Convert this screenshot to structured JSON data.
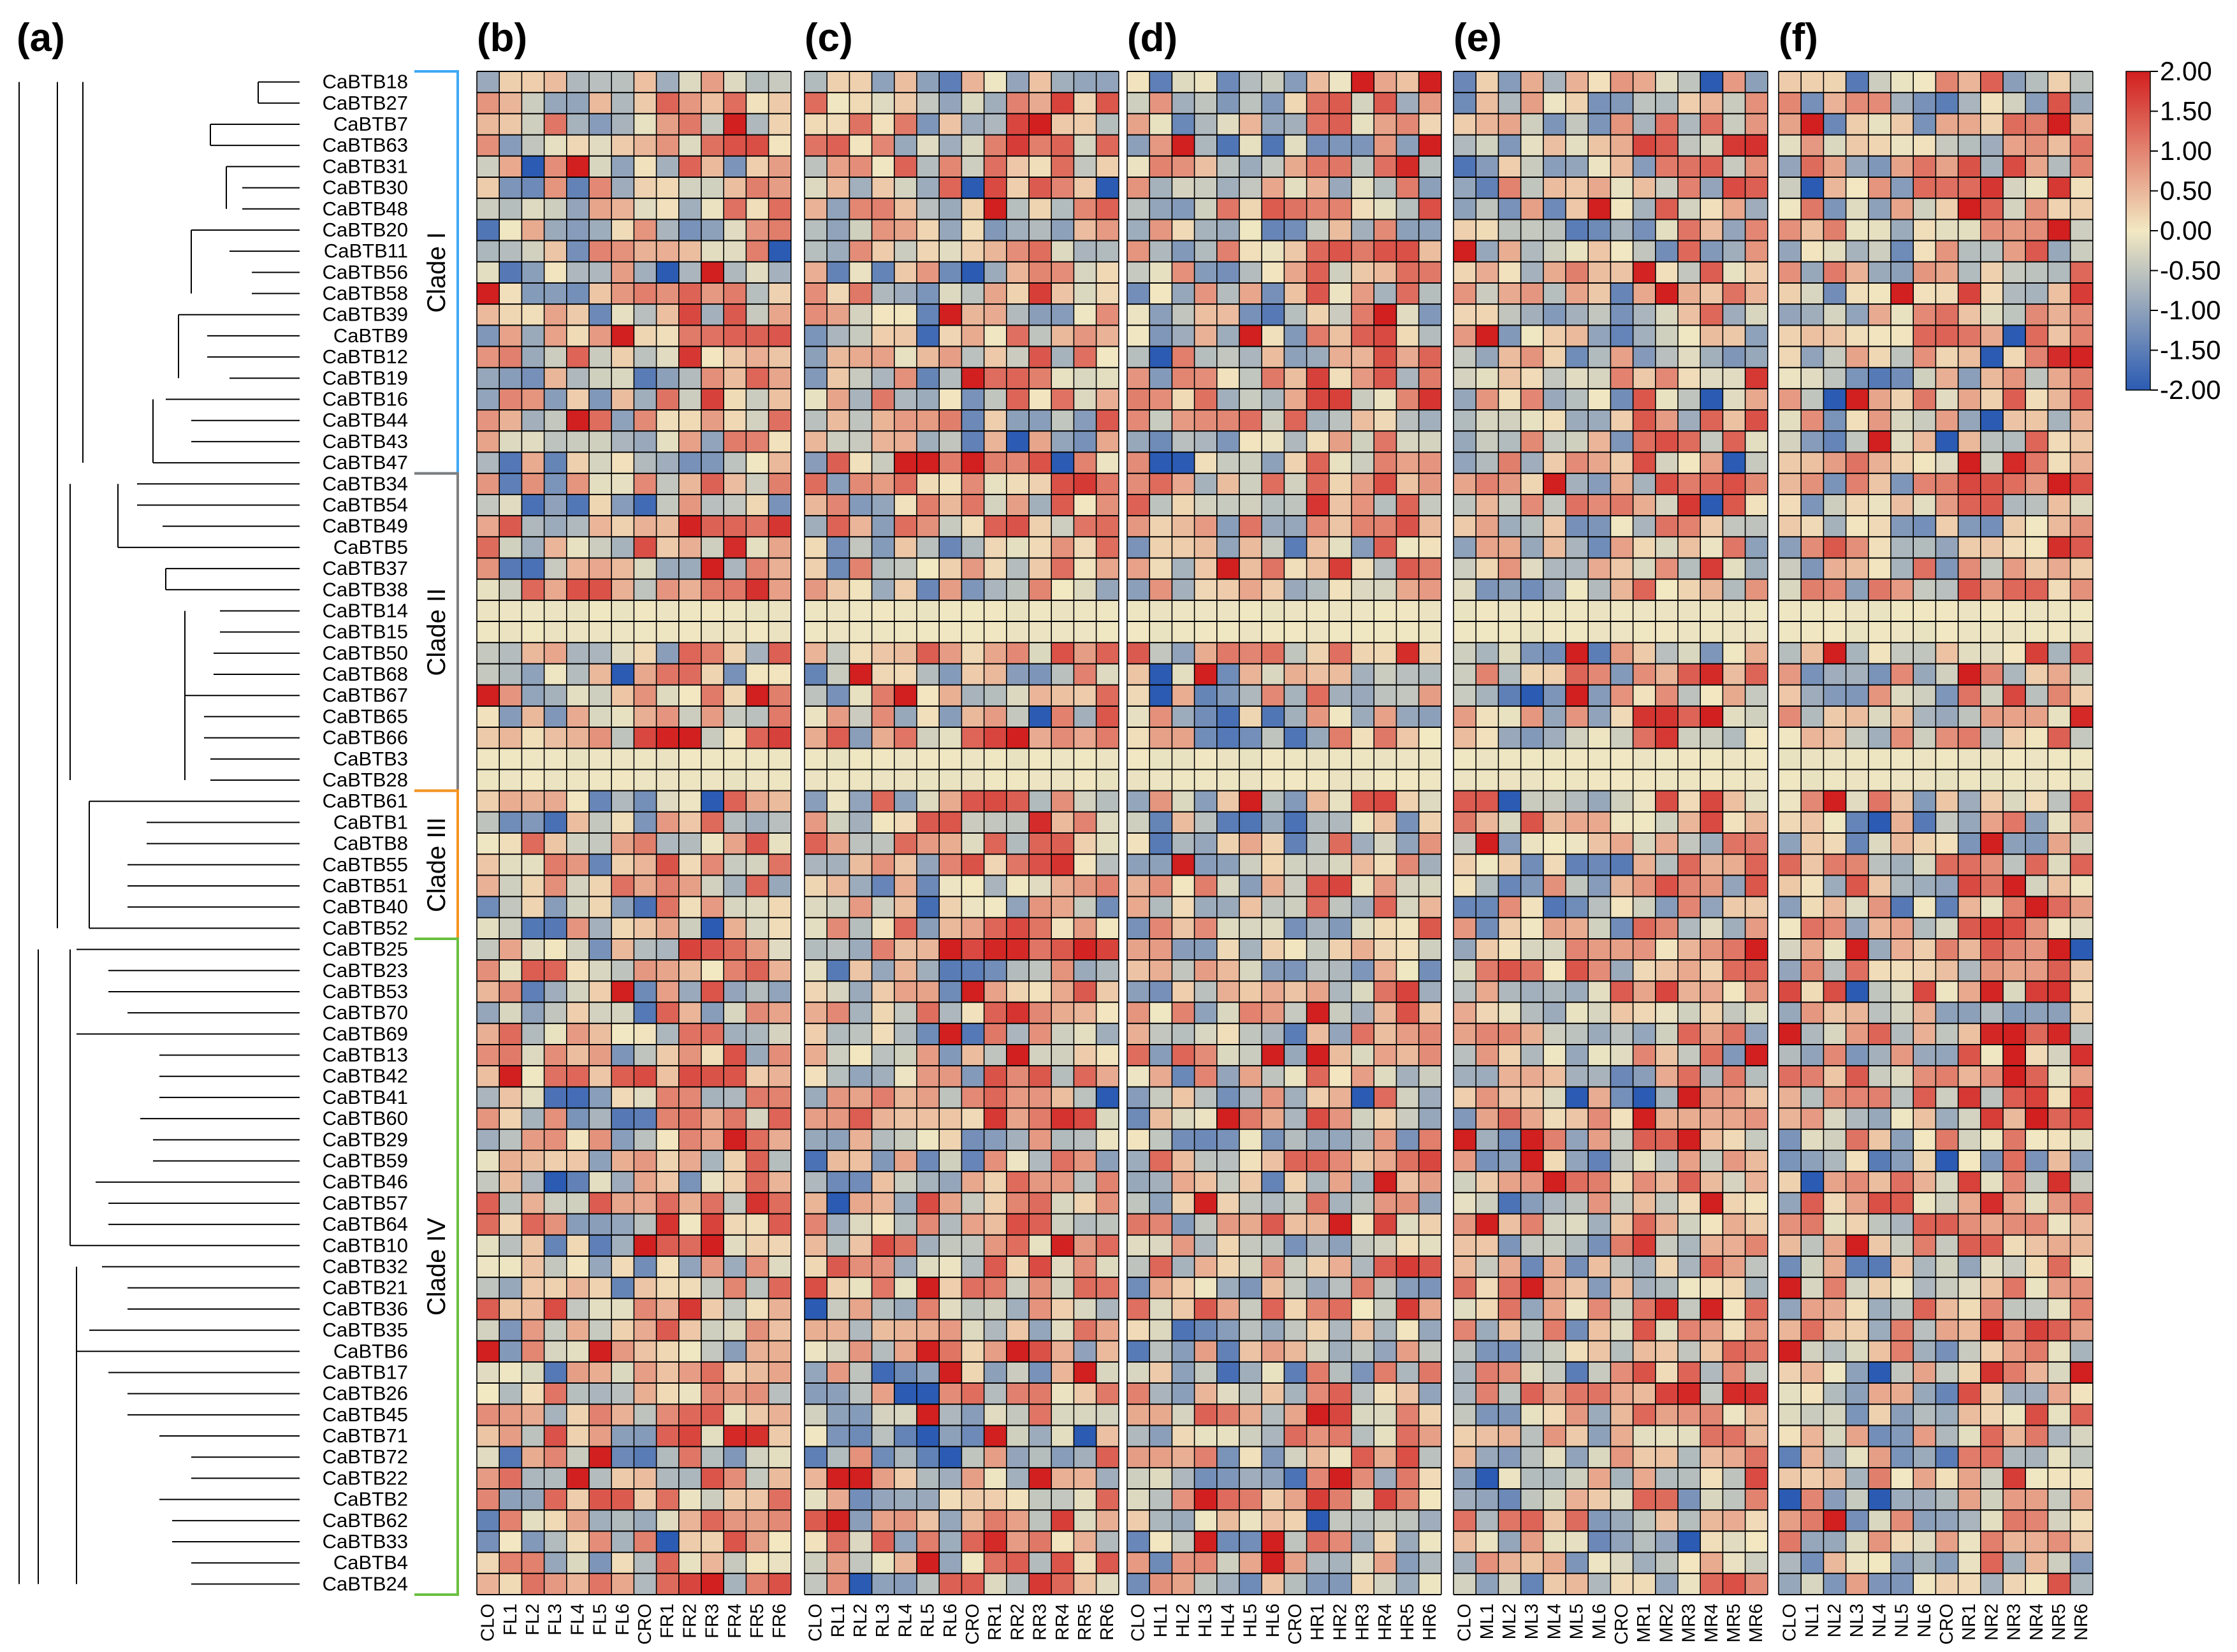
{
  "panel_labels": [
    "(a)",
    "(b)",
    "(c)",
    "(d)",
    "(e)",
    "(f)"
  ],
  "colors": {
    "low": "#2b5bb3",
    "mid": "#f2e8c2",
    "high": "#d21f1f",
    "grid": "#000000",
    "tree": "#000000",
    "clade_i": "#3fa9f5",
    "clade_ii": "#7f7f7f",
    "clade_iii": "#f7941d",
    "clade_iv": "#6abf3f"
  },
  "clades": [
    {
      "name": "Clade I",
      "first": 0,
      "last": 18
    },
    {
      "name": "Clade II",
      "first": 19,
      "last": 33
    },
    {
      "name": "Clade III",
      "first": 34,
      "last": 40
    },
    {
      "name": "Clade IV",
      "first": 41,
      "last": 71
    }
  ],
  "chart_data": {
    "type": "heatmap",
    "genes": [
      "CaBTB18",
      "CaBTB27",
      "CaBTB7",
      "CaBTB63",
      "CaBTB31",
      "CaBTB30",
      "CaBTB48",
      "CaBTB20",
      "CaBTB11",
      "CaBTB56",
      "CaBTB58",
      "CaBTB39",
      "CaBTB9",
      "CaBTB12",
      "CaBTB19",
      "CaBTB16",
      "CaBTB44",
      "CaBTB43",
      "CaBTB47",
      "CaBTB34",
      "CaBTB54",
      "CaBTB49",
      "CaBTB5",
      "CaBTB37",
      "CaBTB38",
      "CaBTB14",
      "CaBTB15",
      "CaBTB50",
      "CaBTB68",
      "CaBTB67",
      "CaBTB65",
      "CaBTB66",
      "CaBTB3",
      "CaBTB28",
      "CaBTB61",
      "CaBTB1",
      "CaBTB8",
      "CaBTB55",
      "CaBTB51",
      "CaBTB40",
      "CaBTB52",
      "CaBTB25",
      "CaBTB23",
      "CaBTB53",
      "CaBTB70",
      "CaBTB69",
      "CaBTB13",
      "CaBTB42",
      "CaBTB41",
      "CaBTB60",
      "CaBTB29",
      "CaBTB59",
      "CaBTB46",
      "CaBTB57",
      "CaBTB64",
      "CaBTB10",
      "CaBTB32",
      "CaBTB21",
      "CaBTB36",
      "CaBTB35",
      "CaBTB6",
      "CaBTB17",
      "CaBTB26",
      "CaBTB45",
      "CaBTB71",
      "CaBTB72",
      "CaBTB22",
      "CaBTB2",
      "CaBTB62",
      "CaBTB33",
      "CaBTB4",
      "CaBTB24"
    ],
    "panels": [
      {
        "label": "(b)",
        "columns": [
          "CLO",
          "FL1",
          "FL2",
          "FL3",
          "FL4",
          "FL5",
          "FL6",
          "CRO",
          "FR1",
          "FR2",
          "FR3",
          "FR4",
          "FR5",
          "FR6"
        ],
        "seed": 11
      },
      {
        "label": "(c)",
        "columns": [
          "CLO",
          "RL1",
          "RL2",
          "RL3",
          "RL4",
          "RL5",
          "RL6",
          "CRO",
          "RR1",
          "RR2",
          "RR3",
          "RR4",
          "RR5",
          "RR6"
        ],
        "seed": 23
      },
      {
        "label": "(d)",
        "columns": [
          "CLO",
          "HL1",
          "HL2",
          "HL3",
          "HL4",
          "HL5",
          "HL6",
          "CRO",
          "HR1",
          "HR2",
          "HR3",
          "HR4",
          "HR5",
          "HR6"
        ],
        "seed": 37
      },
      {
        "label": "(e)",
        "columns": [
          "CLO",
          "ML1",
          "ML2",
          "ML3",
          "ML4",
          "ML5",
          "ML6",
          "CRO",
          "MR1",
          "MR2",
          "MR3",
          "MR4",
          "MR5",
          "MR6"
        ],
        "seed": 53
      },
      {
        "label": "(f)",
        "columns": [
          "CLO",
          "NL1",
          "NL2",
          "NL3",
          "NL4",
          "NL5",
          "NL6",
          "CRO",
          "NR1",
          "NR2",
          "NR3",
          "NR4",
          "NR5",
          "NR6"
        ],
        "seed": 71
      }
    ],
    "flat_rows": [
      25,
      26,
      32,
      33
    ],
    "value_range": [
      -2.0,
      2.0
    ],
    "colorbar_ticks": [
      "2.00",
      "1.50",
      "1.00",
      "0.50",
      "0.00",
      "-0.50",
      "-1.00",
      "-1.50",
      "-2.00"
    ]
  }
}
